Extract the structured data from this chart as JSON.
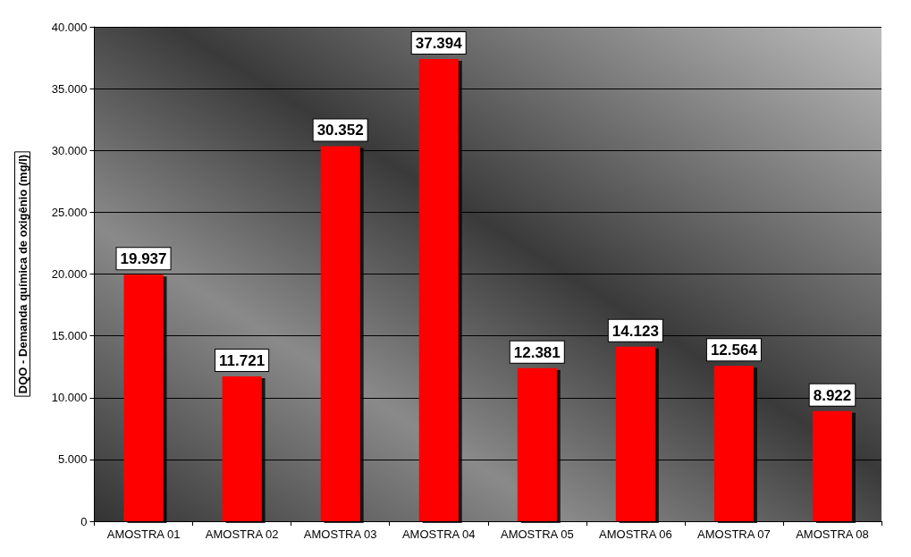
{
  "chart_data": {
    "type": "bar",
    "ylabel": "DQO - Demanda química de oxigênio (mg/l)",
    "categories": [
      "AMOSTRA 01",
      "AMOSTRA 02",
      "AMOSTRA 03",
      "AMOSTRA 04",
      "AMOSTRA 05",
      "AMOSTRA 06",
      "AMOSTRA 07",
      "AMOSTRA 08"
    ],
    "values": [
      19937,
      11721,
      30352,
      37394,
      12381,
      14123,
      12564,
      8922
    ],
    "value_labels": [
      "19.937",
      "11.721",
      "30.352",
      "37.394",
      "12.381",
      "14.123",
      "12.564",
      "8.922"
    ],
    "color": "#ff0000",
    "ylim": [
      0,
      40000
    ],
    "yticks": [
      0,
      {
        "value": 5000,
        "label": "5.000"
      },
      {
        "value": 10000,
        "label": "10.000"
      },
      {
        "value": 15000,
        "label": "15.000"
      },
      {
        "value": 20000,
        "label": "20.000"
      },
      {
        "value": 25000,
        "label": "25.000"
      },
      {
        "value": 30000,
        "label": "30.000"
      },
      {
        "value": 35000,
        "label": "35.000"
      },
      {
        "value": 40000,
        "label": "40.000"
      }
    ],
    "grid": "y"
  }
}
